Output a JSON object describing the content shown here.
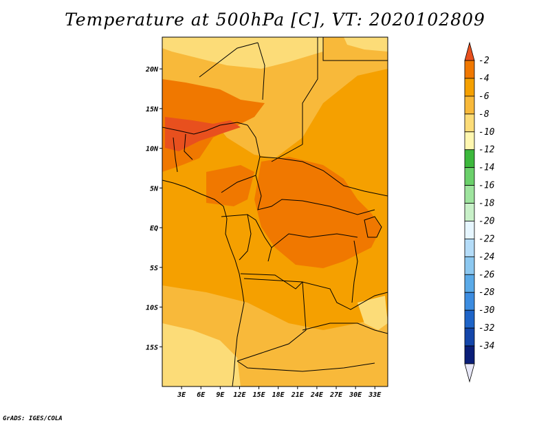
{
  "title": "Temperature at 500hPa [C], VT: 2020102809",
  "credit": "GrADS: IGES/COLA",
  "map": {
    "lon_range": [
      0,
      35
    ],
    "lat_range": [
      -20,
      24
    ],
    "lat_ticks": [
      {
        "value": 20,
        "label": "20N"
      },
      {
        "value": 15,
        "label": "15N"
      },
      {
        "value": 10,
        "label": "10N"
      },
      {
        "value": 5,
        "label": "5N"
      },
      {
        "value": 0,
        "label": "EQ"
      },
      {
        "value": -5,
        "label": "5S"
      },
      {
        "value": -10,
        "label": "10S"
      },
      {
        "value": -15,
        "label": "15S"
      }
    ],
    "lon_ticks": [
      {
        "value": 3,
        "label": "3E"
      },
      {
        "value": 6,
        "label": "6E"
      },
      {
        "value": 9,
        "label": "9E"
      },
      {
        "value": 12,
        "label": "12E"
      },
      {
        "value": 15,
        "label": "15E"
      },
      {
        "value": 18,
        "label": "18E"
      },
      {
        "value": 21,
        "label": "21E"
      },
      {
        "value": 24,
        "label": "24E"
      },
      {
        "value": 27,
        "label": "27E"
      },
      {
        "value": 30,
        "label": "30E"
      },
      {
        "value": 33,
        "label": "33E"
      }
    ]
  },
  "colorbar": {
    "labels": [
      "-2",
      "-4",
      "-6",
      "-8",
      "-10",
      "-12",
      "-14",
      "-16",
      "-18",
      "-20",
      "-22",
      "-24",
      "-26",
      "-28",
      "-30",
      "-32",
      "-34"
    ],
    "colors": [
      "#e8501e",
      "#f07800",
      "#f5a000",
      "#f8b93a",
      "#fcdc78",
      "#fff7b0",
      "#3cb83c",
      "#6ad06a",
      "#9ee49e",
      "#c8f0c8",
      "#e6f6ff",
      "#b4dcf8",
      "#8cc8f0",
      "#5aaae8",
      "#3c8ce0",
      "#1e64c8",
      "#1446aa",
      "#0a1e78",
      "#e8e8f8"
    ]
  }
}
